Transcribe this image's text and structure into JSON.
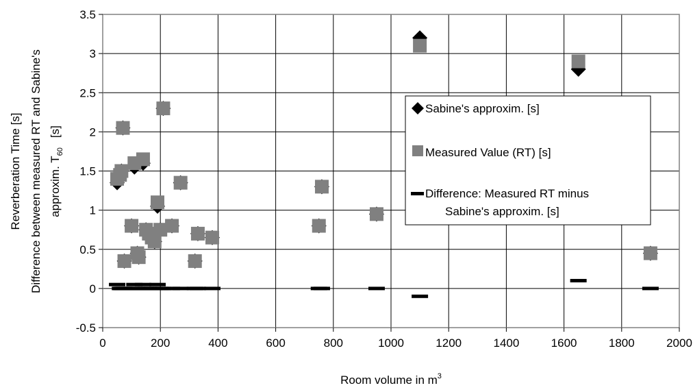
{
  "chart_data": {
    "type": "scatter",
    "xlabel": "Room volume in m",
    "xlabel_sup": "3",
    "ylabel_line1": "Reverberation Time [s]",
    "ylabel_line2": "Difference between measured RT and Sabine's",
    "ylabel_line3": "approxim. T",
    "ylabel_sub": "60",
    "ylabel_line3_end": "[s]",
    "xlim": [
      0,
      2000
    ],
    "ylim": [
      -0.5,
      3.5
    ],
    "x_ticks": [
      0,
      200,
      400,
      600,
      800,
      1000,
      1200,
      1400,
      1600,
      1800,
      2000
    ],
    "y_ticks": [
      -0.5,
      0,
      0.5,
      1,
      1.5,
      2,
      2.5,
      3,
      3.5
    ],
    "y_tick_labels": [
      "-0.5",
      "0",
      "0.5",
      "1",
      "1.5",
      "2",
      "2.5",
      "3",
      "3.5"
    ],
    "grid": true,
    "legend_position": "center-right",
    "series": [
      {
        "name": "Sabine's approxim. [s]",
        "marker": "diamond",
        "color": "#000000",
        "points": [
          [
            50,
            1.35
          ],
          [
            60,
            1.45
          ],
          [
            65,
            1.5
          ],
          [
            70,
            2.05
          ],
          [
            75,
            0.35
          ],
          [
            100,
            0.8
          ],
          [
            110,
            1.55
          ],
          [
            120,
            0.45
          ],
          [
            125,
            0.4
          ],
          [
            140,
            1.6
          ],
          [
            150,
            0.75
          ],
          [
            160,
            0.7
          ],
          [
            170,
            0.65
          ],
          [
            180,
            0.6
          ],
          [
            190,
            1.05
          ],
          [
            200,
            0.75
          ],
          [
            210,
            2.3
          ],
          [
            240,
            0.8
          ],
          [
            270,
            1.35
          ],
          [
            320,
            0.35
          ],
          [
            330,
            0.7
          ],
          [
            380,
            0.65
          ],
          [
            750,
            0.8
          ],
          [
            760,
            1.3
          ],
          [
            950,
            0.95
          ],
          [
            1100,
            3.2
          ],
          [
            1650,
            2.8
          ],
          [
            1900,
            0.45
          ]
        ]
      },
      {
        "name": "Measured Value (RT) [s]",
        "marker": "square",
        "color": "#808080",
        "points": [
          [
            50,
            1.4
          ],
          [
            60,
            1.45
          ],
          [
            65,
            1.5
          ],
          [
            70,
            2.05
          ],
          [
            75,
            0.35
          ],
          [
            100,
            0.8
          ],
          [
            110,
            1.6
          ],
          [
            120,
            0.45
          ],
          [
            125,
            0.4
          ],
          [
            140,
            1.65
          ],
          [
            150,
            0.75
          ],
          [
            160,
            0.7
          ],
          [
            170,
            0.65
          ],
          [
            180,
            0.6
          ],
          [
            190,
            1.1
          ],
          [
            200,
            0.75
          ],
          [
            210,
            2.3
          ],
          [
            240,
            0.8
          ],
          [
            270,
            1.35
          ],
          [
            320,
            0.35
          ],
          [
            330,
            0.7
          ],
          [
            380,
            0.65
          ],
          [
            750,
            0.8
          ],
          [
            760,
            1.3
          ],
          [
            950,
            0.95
          ],
          [
            1100,
            3.1
          ],
          [
            1650,
            2.9
          ],
          [
            1900,
            0.45
          ]
        ]
      },
      {
        "name": "Difference: Measured RT minus Sabine's approxim. [s]",
        "name_line1": "Difference: Measured RT minus",
        "name_line2": "Sabine's approxim. [s]",
        "marker": "dash",
        "color": "#000000",
        "points": [
          [
            50,
            0.05
          ],
          [
            60,
            0.0
          ],
          [
            65,
            0.0
          ],
          [
            70,
            0.0
          ],
          [
            75,
            0.0
          ],
          [
            100,
            0.0
          ],
          [
            110,
            0.05
          ],
          [
            120,
            0.0
          ],
          [
            125,
            0.0
          ],
          [
            140,
            0.05
          ],
          [
            150,
            0.0
          ],
          [
            160,
            0.0
          ],
          [
            170,
            0.0
          ],
          [
            180,
            0.0
          ],
          [
            190,
            0.05
          ],
          [
            200,
            0.0
          ],
          [
            210,
            0.0
          ],
          [
            240,
            0.0
          ],
          [
            270,
            0.0
          ],
          [
            320,
            0.0
          ],
          [
            330,
            0.0
          ],
          [
            380,
            0.0
          ],
          [
            750,
            0.0
          ],
          [
            760,
            0.0
          ],
          [
            950,
            0.0
          ],
          [
            1100,
            -0.1
          ],
          [
            1650,
            0.1
          ],
          [
            1900,
            0.0
          ]
        ]
      }
    ]
  }
}
